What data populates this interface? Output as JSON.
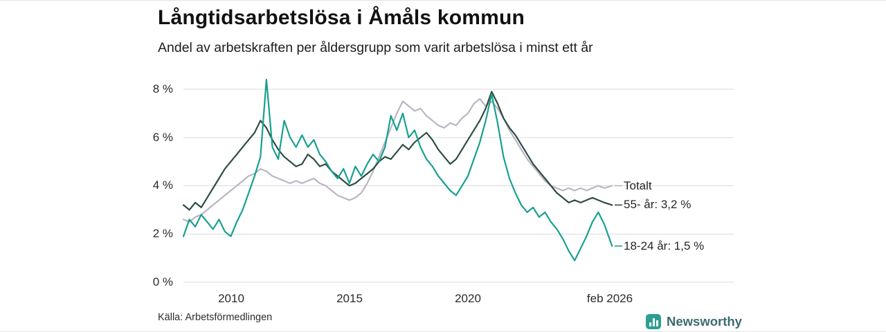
{
  "header": {
    "title": "Långtidsarbetslösa i Åmåls kommun",
    "subtitle": "Andel av arbetskraften per åldersgrupp som varit arbetslösa i minst ett år"
  },
  "footer": {
    "source": "Källa: Arbetsförmedlingen",
    "brand": "Newsworthy"
  },
  "colors": {
    "grid": "#dbdbdb",
    "series_total": "#b9b6c5",
    "series_55": "#2e4b44",
    "series_18_24": "#16a08f",
    "brand_icon": "#2e9e90",
    "brand_text": "#3c6b6e"
  },
  "chart_data": {
    "type": "line",
    "title": "Långtidsarbetslösa i Åmåls kommun",
    "subtitle": "Andel av arbetskraften per åldersgrupp som varit arbetslösa i minst ett år",
    "unit": "%",
    "xlabel": "",
    "ylabel": "",
    "grid": true,
    "legend_position": "right-end-labels",
    "xlim": [
      2008,
      2026.1
    ],
    "ylim": [
      0,
      8
    ],
    "y_ticks": {
      "values": [
        0,
        2,
        4,
        6,
        8
      ],
      "labels": [
        "0 %",
        "2 %",
        "4 %",
        "6 %",
        "8 %"
      ]
    },
    "x_ticks": {
      "values": [
        2010,
        2015,
        2020,
        2026.08
      ],
      "labels": [
        "2010",
        "2015",
        "2020",
        "feb 2026"
      ]
    },
    "x": [
      2008,
      2008.25,
      2008.5,
      2008.75,
      2009,
      2009.25,
      2009.5,
      2009.75,
      2010,
      2010.25,
      2010.5,
      2010.75,
      2011,
      2011.25,
      2011.5,
      2011.75,
      2012,
      2012.25,
      2012.5,
      2012.75,
      2013,
      2013.25,
      2013.5,
      2013.75,
      2014,
      2014.25,
      2014.5,
      2014.75,
      2015,
      2015.25,
      2015.5,
      2015.75,
      2016,
      2016.25,
      2016.5,
      2016.75,
      2017,
      2017.25,
      2017.5,
      2017.75,
      2018,
      2018.25,
      2018.5,
      2018.75,
      2019,
      2019.25,
      2019.5,
      2019.75,
      2020,
      2020.25,
      2020.5,
      2020.75,
      2021,
      2021.25,
      2021.5,
      2021.75,
      2022,
      2022.25,
      2022.5,
      2022.75,
      2023,
      2023.25,
      2023.5,
      2023.75,
      2024,
      2024.25,
      2024.5,
      2024.75,
      2025,
      2025.25,
      2025.5,
      2025.75,
      2026.08
    ],
    "series": [
      {
        "name": "Totalt",
        "end_label": "Totalt",
        "color": "#b9b6c5",
        "last_value_pct": 4.0,
        "values": [
          2.6,
          2.5,
          2.7,
          2.8,
          3,
          3.2,
          3.4,
          3.6,
          3.8,
          4,
          4.2,
          4.4,
          4.5,
          4.7,
          4.6,
          4.4,
          4.3,
          4.2,
          4.1,
          4.2,
          4.1,
          4.2,
          4.3,
          4.1,
          4,
          3.8,
          3.6,
          3.5,
          3.4,
          3.5,
          3.7,
          4.1,
          4.6,
          5.2,
          5.8,
          6.4,
          7,
          7.5,
          7.3,
          7.1,
          7.2,
          6.9,
          6.7,
          6.5,
          6.4,
          6.6,
          6.5,
          6.8,
          7,
          7.4,
          7.6,
          7.3,
          7.5,
          7.2,
          6.8,
          6.3,
          5.9,
          5.5,
          5.1,
          4.8,
          4.5,
          4.2,
          4,
          3.9,
          3.8,
          3.9,
          3.8,
          3.9,
          3.8,
          3.9,
          4,
          3.9,
          4
        ]
      },
      {
        "name": "55- år",
        "end_label": "55- år: 3,2 %",
        "color": "#2e4b44",
        "last_value_pct": 3.2,
        "values": [
          3.2,
          3,
          3.3,
          3.1,
          3.5,
          3.9,
          4.3,
          4.7,
          5,
          5.3,
          5.6,
          5.9,
          6.2,
          6.7,
          6.4,
          5.9,
          5.5,
          5.2,
          5,
          4.8,
          4.9,
          5.3,
          5.1,
          4.8,
          4.9,
          4.6,
          4.4,
          4.2,
          4,
          4.1,
          4.3,
          4.5,
          4.7,
          5,
          5.2,
          5.1,
          5.4,
          5.7,
          5.5,
          5.8,
          6,
          6.2,
          5.9,
          5.5,
          5.2,
          4.9,
          5.1,
          5.5,
          5.9,
          6.3,
          6.7,
          7.2,
          7.9,
          7.4,
          6.8,
          6.4,
          6.1,
          5.7,
          5.3,
          4.9,
          4.6,
          4.3,
          4,
          3.7,
          3.5,
          3.3,
          3.4,
          3.3,
          3.4,
          3.5,
          3.4,
          3.3,
          3.2
        ]
      },
      {
        "name": "18-24 år",
        "end_label": "18-24 år: 1,5 %",
        "color": "#16a08f",
        "last_value_pct": 1.5,
        "values": [
          1.9,
          2.6,
          2.3,
          2.8,
          2.5,
          2.2,
          2.6,
          2.1,
          1.9,
          2.5,
          3,
          3.7,
          4.4,
          5.2,
          8.4,
          5.6,
          5.1,
          6.7,
          6,
          5.6,
          6.1,
          5.6,
          5.9,
          5.3,
          5,
          4.6,
          4.3,
          4.7,
          4.1,
          4.8,
          4.4,
          4.9,
          5.3,
          5,
          5.6,
          6.9,
          6.3,
          7,
          6,
          6.3,
          5.6,
          5.1,
          4.8,
          4.4,
          4.1,
          3.8,
          3.6,
          4,
          4.4,
          5.1,
          5.8,
          6.7,
          7.8,
          6.6,
          5.2,
          4.3,
          3.7,
          3.2,
          2.9,
          3.1,
          2.7,
          2.9,
          2.5,
          2.2,
          1.8,
          1.3,
          0.9,
          1.4,
          1.9,
          2.5,
          2.9,
          2.4,
          1.5
        ]
      }
    ]
  }
}
